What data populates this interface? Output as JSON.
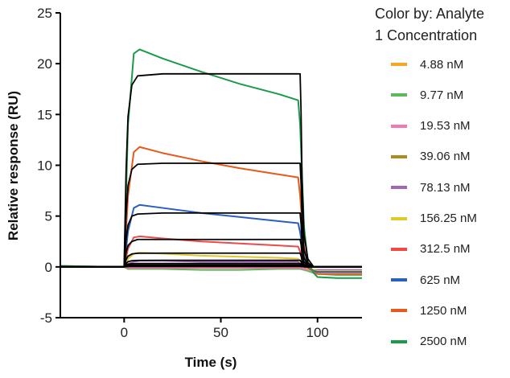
{
  "chart_data": {
    "type": "line",
    "xlabel": "Time (s)",
    "ylabel": "Relative response (RU)",
    "xlim": [
      -33,
      123
    ],
    "ylim": [
      -5,
      25
    ],
    "xticks": [
      0,
      50,
      100
    ],
    "yticks": [
      -5,
      0,
      5,
      10,
      15,
      20,
      25
    ],
    "grid": false,
    "legend": {
      "title": "Color by: Analyte 1 Concentration",
      "placement": "right"
    },
    "fit_color": "#000000",
    "obs_t": [
      -33,
      -5,
      0,
      2,
      5,
      8,
      20,
      40,
      60,
      80,
      90,
      91,
      93,
      95,
      98,
      100,
      110,
      123
    ],
    "fit_t": [
      -33,
      0,
      1,
      2,
      4,
      7,
      20,
      91,
      91.5,
      92,
      93,
      95,
      98,
      123
    ],
    "series": [
      {
        "name": "4.88 nM",
        "color": "#f5a623",
        "y": [
          0,
          0,
          0,
          -0.2,
          -0.1,
          -0.1,
          -0.1,
          -0.1,
          -0.1,
          -0.1,
          -0.1,
          -0.1,
          -0.2,
          -0.3,
          -0.4,
          -0.4,
          -0.4,
          -0.4
        ],
        "fit": [
          0,
          0,
          0.02,
          0.03,
          0.04,
          0.04,
          0.04,
          0.04,
          0.03,
          0.02,
          0.01,
          0,
          0,
          0
        ]
      },
      {
        "name": "9.77 nM",
        "color": "#5cb85c",
        "y": [
          0.1,
          0,
          0,
          -0.2,
          -0.2,
          -0.2,
          -0.2,
          -0.3,
          -0.3,
          -0.2,
          -0.2,
          -0.2,
          -0.3,
          -0.4,
          -0.6,
          -0.7,
          -0.8,
          -0.8
        ],
        "fit": [
          0,
          0,
          0.04,
          0.06,
          0.08,
          0.08,
          0.08,
          0.08,
          0.06,
          0.04,
          0.01,
          0,
          0,
          0
        ]
      },
      {
        "name": "19.53 nM",
        "color": "#f07ab0",
        "y": [
          0,
          0,
          0,
          -0.1,
          -0.1,
          -0.1,
          -0.1,
          -0.1,
          -0.1,
          -0.1,
          -0.1,
          -0.1,
          -0.2,
          -0.3,
          -0.4,
          -0.5,
          -0.5,
          -0.5
        ],
        "fit": [
          0,
          0,
          0.09,
          0.13,
          0.16,
          0.17,
          0.17,
          0.17,
          0.14,
          0.08,
          0.03,
          0.01,
          0,
          0
        ]
      },
      {
        "name": "39.06 nM",
        "color": "#b08a1e",
        "y": [
          0,
          0,
          0,
          0.1,
          0.3,
          0.3,
          0.3,
          0.3,
          0.3,
          0.3,
          0.3,
          0.2,
          0,
          -0.1,
          -0.3,
          -0.3,
          -0.3,
          -0.3
        ],
        "fit": [
          0,
          0,
          0.17,
          0.26,
          0.31,
          0.33,
          0.33,
          0.33,
          0.26,
          0.15,
          0.06,
          0.01,
          0,
          0
        ]
      },
      {
        "name": "78.13 nM",
        "color": "#a066b8",
        "y": [
          0,
          0,
          0,
          0.3,
          0.5,
          0.6,
          0.6,
          0.5,
          0.5,
          0.5,
          0.5,
          0.3,
          0,
          -0.2,
          -0.3,
          -0.3,
          -0.3,
          -0.3
        ],
        "fit": [
          0,
          0,
          0.33,
          0.51,
          0.61,
          0.64,
          0.65,
          0.65,
          0.52,
          0.29,
          0.11,
          0.03,
          0,
          0
        ]
      },
      {
        "name": "156.25 nM",
        "color": "#e0c82a",
        "y": [
          0,
          0,
          0,
          0.8,
          1.3,
          1.4,
          1.3,
          1.1,
          1.0,
          0.9,
          0.8,
          0.6,
          0.1,
          -0.2,
          -0.3,
          -0.4,
          -0.4,
          -0.4
        ],
        "fit": [
          0,
          0,
          0.7,
          1.05,
          1.27,
          1.34,
          1.35,
          1.35,
          1.08,
          0.61,
          0.23,
          0.05,
          0,
          0
        ]
      },
      {
        "name": "312.5 nM",
        "color": "#f04848",
        "y": [
          0,
          0,
          0,
          1.8,
          2.9,
          3.0,
          2.8,
          2.5,
          2.3,
          2.1,
          2.0,
          1.5,
          0.4,
          -0.1,
          -0.4,
          -0.5,
          -0.5,
          -0.5
        ],
        "fit": [
          0,
          0,
          1.4,
          2.1,
          2.5,
          2.7,
          2.7,
          2.7,
          2.2,
          1.2,
          0.5,
          0.1,
          0,
          0
        ]
      },
      {
        "name": "625 nM",
        "color": "#2a5fbf",
        "y": [
          0,
          0,
          0,
          3.5,
          5.8,
          6.1,
          5.8,
          5.3,
          4.9,
          4.5,
          4.3,
          3.4,
          1,
          0,
          -0.4,
          -0.5,
          -0.5,
          -0.5
        ],
        "fit": [
          0,
          0,
          2.7,
          4.1,
          5.0,
          5.2,
          5.3,
          5.3,
          4.2,
          2.4,
          0.9,
          0.2,
          0,
          0
        ]
      },
      {
        "name": "1250 nM",
        "color": "#e85a1a",
        "y": [
          0,
          0,
          0,
          7,
          11.3,
          11.8,
          11.2,
          10.4,
          9.7,
          9.1,
          8.8,
          7,
          2,
          0.2,
          -0.5,
          -0.7,
          -0.7,
          -0.7
        ],
        "fit": [
          0,
          0,
          5.1,
          8.0,
          9.6,
          10.1,
          10.2,
          10.2,
          8.2,
          4.6,
          1.7,
          0.4,
          0,
          0
        ]
      },
      {
        "name": "2500 nM",
        "color": "#1a9a4a",
        "y": [
          0.1,
          0,
          0,
          14,
          21,
          21.4,
          20.5,
          19.2,
          18.0,
          17.0,
          16.4,
          14,
          4,
          0.5,
          -0.6,
          -1.0,
          -1.1,
          -1.1
        ],
        "fit": [
          0,
          0,
          9.5,
          14.8,
          17.9,
          18.8,
          19,
          19,
          15.2,
          8.6,
          3.2,
          0.8,
          0,
          0
        ]
      }
    ]
  },
  "legend": {
    "title_line1": "Color by: Analyte",
    "title_line2": "1 Concentration"
  }
}
